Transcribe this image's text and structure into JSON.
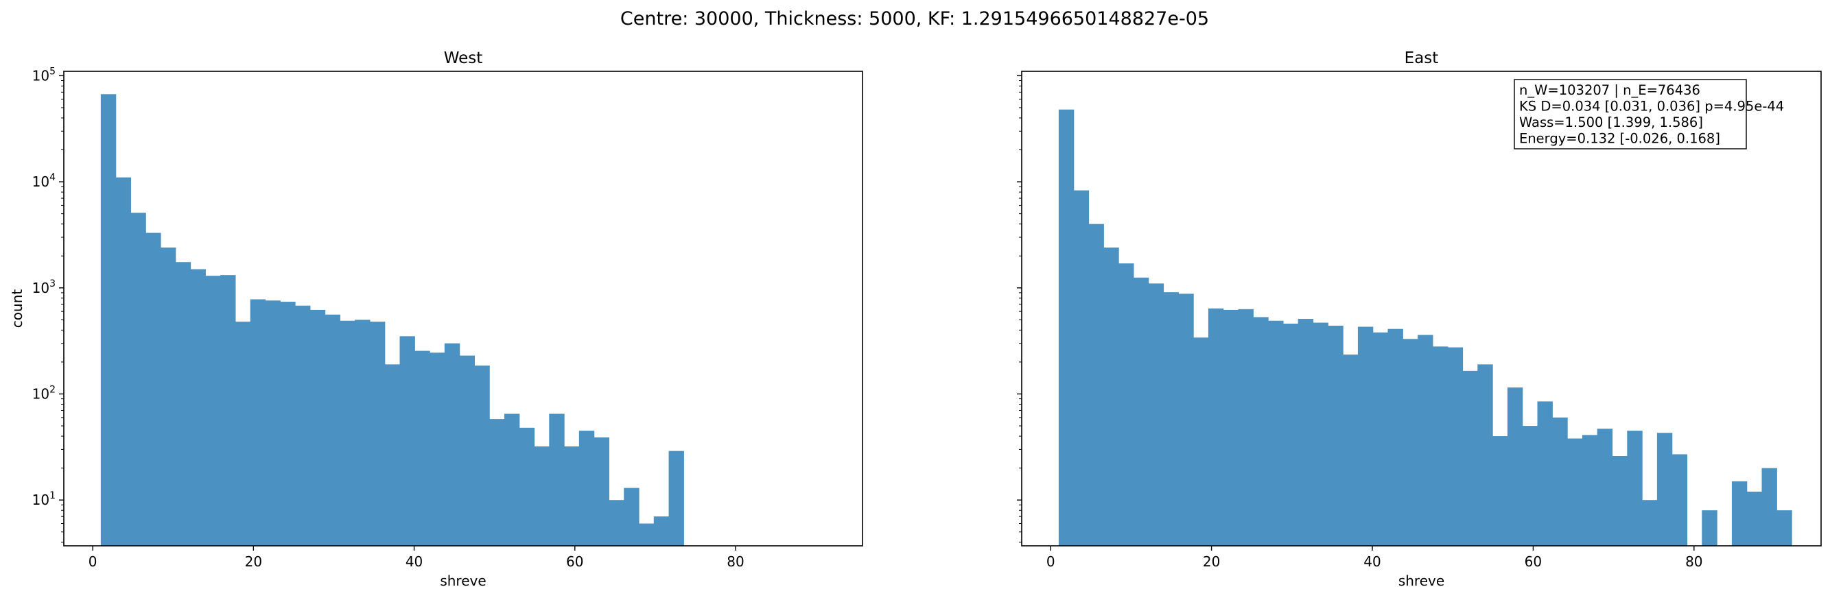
{
  "figure": {
    "suptitle": "Centre: 30000, Thickness: 5000, KF: 1.2915496650148827e-05",
    "bar_color": "#4b92c3"
  },
  "chart_data": [
    {
      "type": "bar",
      "title": "West",
      "xlabel": "shreve",
      "ylabel": "count",
      "yscale": "log",
      "xlim": [
        -3.6,
        95.8
      ],
      "ylim": [
        3.7,
        110000
      ],
      "xticks": [
        0,
        20,
        40,
        60,
        80
      ],
      "yticks": [
        {
          "value": 10,
          "base": "10",
          "exp": "1"
        },
        {
          "value": 100,
          "base": "10",
          "exp": "2"
        },
        {
          "value": 1000,
          "base": "10",
          "exp": "3"
        },
        {
          "value": 10000,
          "base": "10",
          "exp": "4"
        },
        {
          "value": 100000,
          "base": "10",
          "exp": "5"
        }
      ],
      "bin_start": 1.0,
      "bin_width": 1.86,
      "values": [
        67000,
        11000,
        5100,
        3300,
        2400,
        1750,
        1500,
        1300,
        1320,
        480,
        780,
        760,
        740,
        680,
        620,
        560,
        490,
        500,
        480,
        190,
        350,
        255,
        245,
        300,
        230,
        185,
        58,
        65,
        48,
        32,
        65,
        32,
        45,
        39,
        10,
        13,
        6,
        7,
        29,
        0,
        0,
        0,
        0,
        0,
        0,
        0,
        0,
        0,
        0,
        0
      ]
    },
    {
      "type": "bar",
      "title": "East",
      "xlabel": "shreve",
      "ylabel": "",
      "yscale": "log",
      "xlim": [
        -3.6,
        95.8
      ],
      "ylim": [
        3.7,
        110000
      ],
      "xticks": [
        0,
        20,
        40,
        60,
        80
      ],
      "yticks": [],
      "bin_start": 1.0,
      "bin_width": 1.86,
      "values": [
        48000,
        8300,
        4000,
        2400,
        1700,
        1250,
        1100,
        910,
        880,
        340,
        640,
        620,
        630,
        530,
        490,
        460,
        510,
        470,
        440,
        235,
        430,
        380,
        410,
        330,
        360,
        280,
        275,
        165,
        190,
        40,
        115,
        50,
        85,
        60,
        38,
        41,
        47,
        26,
        45,
        10,
        43,
        27,
        0,
        8,
        0,
        15,
        12,
        20,
        8,
        0
      ],
      "stats_box": [
        "n_W=103207 | n_E=76436",
        "KS D=0.034 [0.031, 0.036]  p=4.95e-44",
        "Wass=1.500 [1.399, 1.586]",
        "Energy=0.132 [-0.026, 0.168]"
      ]
    }
  ]
}
